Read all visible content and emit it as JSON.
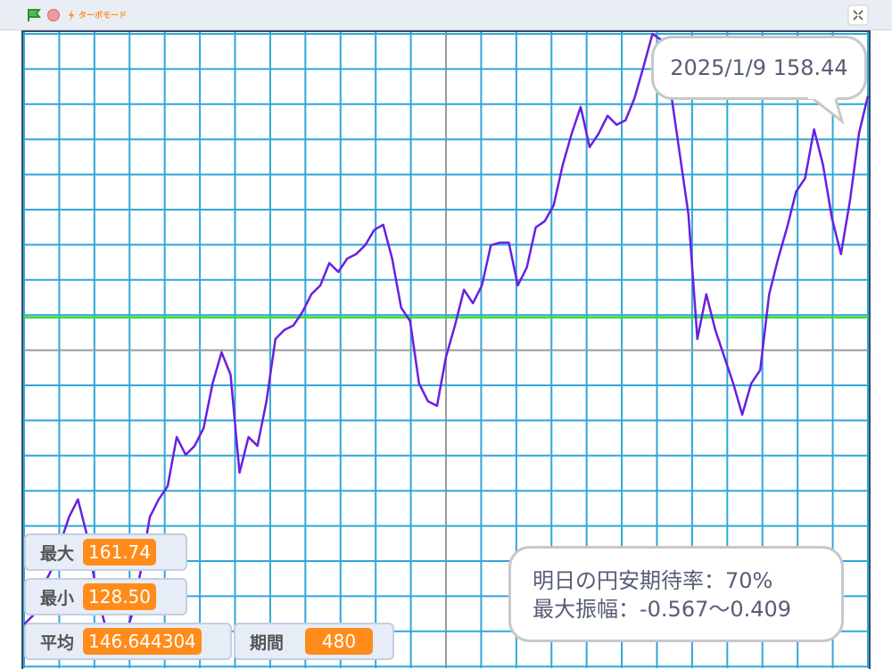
{
  "toolbar": {
    "turbo": "ターボモード"
  },
  "chart_data": {
    "type": "line",
    "grid": true,
    "series": [
      {
        "color": "#6a1fe0",
        "values": [
          130.31,
          130.78,
          132.21,
          133.16,
          134.58,
          136.01,
          136.96,
          135.06,
          132.21,
          130.31,
          128.5,
          129.36,
          130.78,
          133.16,
          136.01,
          136.96,
          137.67,
          140.28,
          139.33,
          139.81,
          140.76,
          143.13,
          144.79,
          143.6,
          138.38,
          140.28,
          139.81,
          142.18,
          145.5,
          145.98,
          146.22,
          146.93,
          147.88,
          148.35,
          149.54,
          149.07,
          149.78,
          150.02,
          150.49,
          151.3,
          151.58,
          149.78,
          147.17,
          146.45,
          143.13,
          142.18,
          141.94,
          144.55,
          146.22,
          148.12,
          147.4,
          148.35,
          150.49,
          150.63,
          150.63,
          148.35,
          149.3,
          151.44,
          151.77,
          152.63,
          154.76,
          156.43,
          157.85,
          155.71,
          156.43,
          157.38,
          156.9,
          157.14,
          158.32,
          159.99,
          161.74,
          161.41,
          158.8,
          155.48,
          152.15,
          145.5,
          147.88,
          145.98,
          144.55,
          143.13,
          141.47,
          143.13,
          143.84,
          147.88,
          149.78,
          151.44,
          153.34,
          154.05,
          156.66,
          154.76,
          151.91,
          150.02,
          152.86,
          156.43,
          158.44
        ]
      }
    ],
    "mean_color": "#3ddc2f"
  },
  "monitors": [
    {
      "label": "最大",
      "value": "161.74"
    },
    {
      "label": "最小",
      "value": "128.50"
    },
    {
      "label": "平均",
      "value": "146.644304"
    },
    {
      "label": "期間",
      "value": "480"
    }
  ],
  "bubble_top": {
    "date": "2025/1/9",
    "value": "158.44"
  },
  "bubble_bottom": {
    "lines": [
      "明日の円安期待率：70%",
      "最大振幅：-0.567～0.409"
    ]
  }
}
